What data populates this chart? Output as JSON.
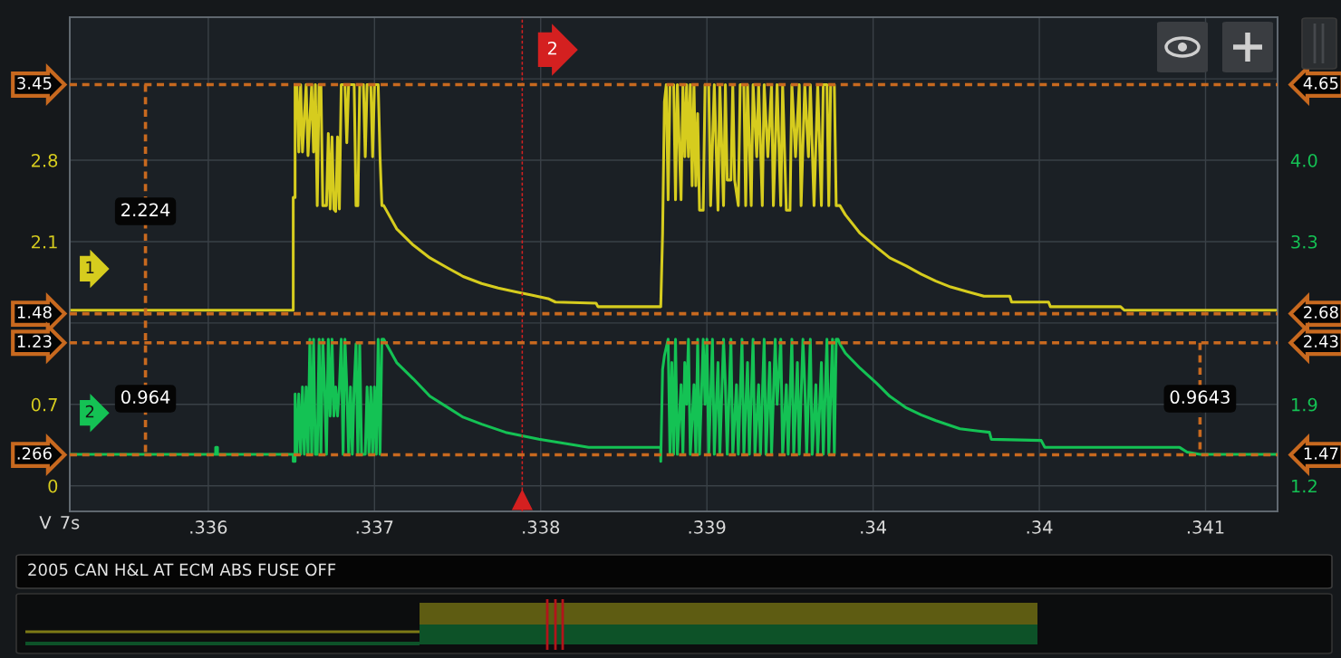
{
  "chart_data": {
    "type": "line",
    "title": "2005 CAN H&L AT ECM ABS FUSE OFF",
    "xlabel": "7s",
    "ylabel": "V",
    "xlim": [
      0.33525,
      0.34179
    ],
    "xticks": [
      {
        "value": 0.336,
        "label": ".336"
      },
      {
        "value": 0.3369,
        "label": ".337"
      },
      {
        "value": 0.3378,
        "label": ".338"
      },
      {
        "value": 0.3387,
        "label": ".339"
      },
      {
        "value": 0.3396,
        "label": ".34"
      },
      {
        "value": 0.3405,
        "label": ".34"
      },
      {
        "value": 0.3414,
        "label": ".341"
      }
    ],
    "ylim": [
      -0.22,
      4.03
    ],
    "yticks": [
      0,
      0.7,
      {
        "value": 1.4,
        "label": null
      },
      2.1,
      2.8,
      {
        "value": 3.5,
        "label": null
      }
    ],
    "y2lim": [
      0.98,
      5.23
    ],
    "y2ticks": [
      1.2,
      1.9,
      {
        "value": 2.6,
        "label": null
      },
      3.3,
      {
        "value": 4.0,
        "label": "4.0"
      },
      {
        "value": 4.7,
        "label": null
      }
    ],
    "grid": true,
    "series": [
      {
        "name": "1",
        "color": "#d6cc1e",
        "x": [
          0.33525,
          0.33646,
          0.33646,
          0.33647,
          0.33647,
          0.33648,
          0.33649,
          0.3365,
          0.33651,
          0.33653,
          0.33654,
          0.33656,
          0.33657,
          0.33658,
          0.33659,
          0.3366,
          0.33661,
          0.33662,
          0.33664,
          0.33665,
          0.33666,
          0.33667,
          0.33668,
          0.33669,
          0.3367,
          0.33671,
          0.33672,
          0.33674,
          0.33675,
          0.33676,
          0.33679,
          0.3368,
          0.33681,
          0.33682,
          0.33684,
          0.33685,
          0.33686,
          0.33688,
          0.33689,
          0.3369,
          0.33692,
          0.33693,
          0.33694,
          0.33695,
          0.33702,
          0.33711,
          0.3372,
          0.3373,
          0.33738,
          0.33748,
          0.33757,
          0.33766,
          0.33775,
          0.33784,
          0.33788,
          0.3381,
          0.33811,
          0.33845,
          0.33846,
          0.33847,
          0.33848,
          0.33849,
          0.3385,
          0.33852,
          0.33853,
          0.33854,
          0.33856,
          0.33857,
          0.33858,
          0.33859,
          0.3386,
          0.33861,
          0.33862,
          0.33863,
          0.33864,
          0.33865,
          0.33866,
          0.33868,
          0.33869,
          0.33871,
          0.33872,
          0.33874,
          0.33876,
          0.33877,
          0.33879,
          0.3388,
          0.33881,
          0.33883,
          0.33884,
          0.33885,
          0.33887,
          0.33888,
          0.3389,
          0.33891,
          0.33892,
          0.33894,
          0.33895,
          0.33897,
          0.33898,
          0.339,
          0.33901,
          0.33903,
          0.33905,
          0.33906,
          0.33908,
          0.3391,
          0.33911,
          0.33913,
          0.33915,
          0.33916,
          0.33918,
          0.3392,
          0.33921,
          0.33923,
          0.33925,
          0.33926,
          0.33928,
          0.3393,
          0.33932,
          0.33933,
          0.33935,
          0.33936,
          0.33937,
          0.33939,
          0.3394,
          0.33942,
          0.33945,
          0.33953,
          0.33962,
          0.33969,
          0.33978,
          0.33986,
          0.33994,
          0.34002,
          0.34011,
          0.3402,
          0.34034,
          0.34035,
          0.34055,
          0.34056,
          0.34094,
          0.34096,
          0.34179
        ],
        "values": [
          1.51,
          1.51,
          2.48,
          2.48,
          3.45,
          3.45,
          2.87,
          3.45,
          2.87,
          3.45,
          2.84,
          3.45,
          2.87,
          3.45,
          2.41,
          3.45,
          3.45,
          2.41,
          2.41,
          3.03,
          2.38,
          3.0,
          2.38,
          2.36,
          3.0,
          2.38,
          3.45,
          3.45,
          2.95,
          3.45,
          3.45,
          2.41,
          2.41,
          3.45,
          3.45,
          2.83,
          3.45,
          3.45,
          2.83,
          3.45,
          3.45,
          2.83,
          2.41,
          2.41,
          2.21,
          2.07,
          1.96,
          1.87,
          1.8,
          1.74,
          1.7,
          1.67,
          1.64,
          1.61,
          1.58,
          1.57,
          1.54,
          1.54,
          2.17,
          3.3,
          3.45,
          2.46,
          3.45,
          3.45,
          2.46,
          3.45,
          2.46,
          3.45,
          2.83,
          3.45,
          2.83,
          3.45,
          2.58,
          3.45,
          2.58,
          3.2,
          2.37,
          2.37,
          3.45,
          3.45,
          2.41,
          3.45,
          2.37,
          3.45,
          2.41,
          3.45,
          2.63,
          2.63,
          3.45,
          2.63,
          2.41,
          3.45,
          3.45,
          2.41,
          3.45,
          2.41,
          3.45,
          2.83,
          3.45,
          2.41,
          3.45,
          2.83,
          3.45,
          2.41,
          3.45,
          2.41,
          3.45,
          2.37,
          2.37,
          3.45,
          2.83,
          3.45,
          2.41,
          3.45,
          2.83,
          3.45,
          2.41,
          3.45,
          2.41,
          3.45,
          3.45,
          2.41,
          3.45,
          3.45,
          2.41,
          2.41,
          2.33,
          2.17,
          2.05,
          1.96,
          1.89,
          1.82,
          1.76,
          1.71,
          1.67,
          1.63,
          1.63,
          1.58,
          1.58,
          1.54,
          1.54,
          1.51,
          1.51
        ]
      },
      {
        "name": "2",
        "color": "#14c254",
        "axis": "y2",
        "x": [
          0.33525,
          0.33604,
          0.33604,
          0.33605,
          0.33605,
          0.33646,
          0.33646,
          0.33647,
          0.33647,
          0.33648,
          0.33649,
          0.3365,
          0.33651,
          0.33652,
          0.33653,
          0.33654,
          0.33655,
          0.33656,
          0.33657,
          0.33658,
          0.33659,
          0.3366,
          0.33661,
          0.33662,
          0.33663,
          0.33664,
          0.33665,
          0.33666,
          0.33667,
          0.33668,
          0.33669,
          0.3367,
          0.33671,
          0.33672,
          0.33673,
          0.33674,
          0.33675,
          0.33676,
          0.33677,
          0.33678,
          0.33679,
          0.3368,
          0.33681,
          0.33682,
          0.33683,
          0.33685,
          0.33686,
          0.33687,
          0.33688,
          0.33689,
          0.3369,
          0.33691,
          0.33692,
          0.33693,
          0.33694,
          0.33695,
          0.33702,
          0.33711,
          0.3372,
          0.3373,
          0.33738,
          0.33748,
          0.33761,
          0.33779,
          0.33806,
          0.33845,
          0.33845,
          0.33846,
          0.33847,
          0.33849,
          0.3385,
          0.33851,
          0.33852,
          0.33853,
          0.33854,
          0.33856,
          0.33857,
          0.33858,
          0.33859,
          0.3386,
          0.33861,
          0.33863,
          0.33864,
          0.33865,
          0.33866,
          0.33868,
          0.33869,
          0.3387,
          0.33871,
          0.33873,
          0.33874,
          0.33876,
          0.33877,
          0.33879,
          0.3388,
          0.33881,
          0.33883,
          0.33884,
          0.33886,
          0.33887,
          0.33889,
          0.3389,
          0.33892,
          0.33893,
          0.33895,
          0.33896,
          0.33898,
          0.33899,
          0.33901,
          0.33902,
          0.33904,
          0.33905,
          0.33907,
          0.33908,
          0.3391,
          0.33911,
          0.33913,
          0.33914,
          0.33916,
          0.33917,
          0.33919,
          0.3392,
          0.33922,
          0.33923,
          0.33924,
          0.33926,
          0.33927,
          0.33929,
          0.3393,
          0.33932,
          0.33933,
          0.33935,
          0.33936,
          0.33938,
          0.33939,
          0.3394,
          0.33941,
          0.33942,
          0.33945,
          0.33953,
          0.33962,
          0.33969,
          0.33978,
          0.33986,
          0.33994,
          0.34007,
          0.34017,
          0.34023,
          0.34024,
          0.34051,
          0.34053,
          0.34126,
          0.3413,
          0.34137,
          0.34179
        ],
        "values": [
          1.47,
          1.47,
          1.53,
          1.53,
          1.47,
          1.47,
          1.41,
          1.41,
          1.99,
          1.47,
          1.99,
          1.47,
          2.05,
          1.47,
          2.05,
          1.47,
          2.46,
          1.47,
          2.46,
          1.47,
          1.47,
          2.46,
          1.47,
          2.46,
          2.05,
          1.47,
          2.46,
          1.8,
          2.46,
          1.8,
          2.05,
          1.8,
          2.05,
          2.46,
          1.47,
          2.46,
          2.05,
          1.47,
          2.05,
          1.47,
          2.05,
          2.42,
          1.47,
          2.42,
          1.47,
          1.47,
          2.05,
          1.47,
          2.05,
          1.47,
          2.05,
          1.47,
          2.46,
          1.47,
          2.46,
          2.46,
          2.26,
          2.12,
          1.97,
          1.87,
          1.79,
          1.73,
          1.66,
          1.6,
          1.53,
          1.53,
          1.41,
          2.2,
          2.32,
          2.46,
          1.47,
          2.26,
          1.47,
          2.46,
          1.47,
          2.07,
          1.47,
          2.26,
          1.9,
          2.46,
          1.47,
          2.07,
          1.47,
          2.46,
          1.47,
          2.46,
          1.9,
          2.46,
          1.47,
          2.46,
          1.47,
          2.26,
          1.47,
          2.46,
          2.07,
          1.47,
          2.46,
          1.47,
          2.07,
          1.47,
          2.46,
          1.47,
          2.26,
          1.47,
          2.46,
          1.47,
          2.07,
          1.47,
          2.46,
          1.47,
          2.26,
          1.47,
          2.46,
          1.9,
          2.46,
          1.47,
          2.07,
          1.47,
          2.46,
          1.47,
          2.26,
          1.47,
          2.46,
          2.07,
          1.47,
          2.46,
          1.47,
          2.07,
          1.47,
          2.26,
          1.47,
          2.46,
          1.47,
          2.46,
          1.47,
          2.46,
          2.46,
          2.42,
          2.34,
          2.21,
          2.08,
          1.97,
          1.87,
          1.81,
          1.76,
          1.69,
          1.67,
          1.66,
          1.6,
          1.59,
          1.53,
          1.53,
          1.49,
          1.47,
          1.47
        ]
      },
      {
        "color": "#c8691f",
        "line_style": "dashed",
        "x": [
          0.33566,
          0.33566
        ],
        "values": [
          3.45,
          0.266
        ]
      },
      {
        "color": "#c8691f",
        "line_style": "dashed",
        "axis": "y2",
        "x": [
          0.34137,
          0.34137
        ],
        "values": [
          2.43,
          1.47
        ]
      }
    ],
    "ref_lines": [
      {
        "axis": "y",
        "value": 3.45,
        "label": "3.45",
        "color": "#c8691f",
        "line_style": "dashed"
      },
      {
        "axis": "y",
        "value": 1.48,
        "label": "1.48",
        "color": "#c8691f",
        "line_style": "dashed"
      },
      {
        "axis": "y",
        "value": 1.23,
        "label": "1.23",
        "color": "#c8691f",
        "line_style": "dashed"
      },
      {
        "axis": "y",
        "value": 0.266,
        "label": ".266",
        "color": "#c8691f",
        "line_style": "dashed"
      },
      {
        "axis": "x",
        "value": 0.3377,
        "color": "#d42020",
        "line_style": "dashed"
      }
    ],
    "annotations": [
      {
        "text": "4.65",
        "x": 0.34179,
        "y": 3.45
      },
      {
        "text": "2.68",
        "x": 0.34179,
        "y": 1.48
      },
      {
        "text": "2.43",
        "x": 0.34179,
        "y": 1.23
      },
      {
        "text": "1.47",
        "x": 0.34179,
        "y": 0.266
      },
      {
        "text": "2.224",
        "x": 0.33566,
        "y": 2.36
      },
      {
        "text": "0.964",
        "x": 0.33566,
        "y": 0.75
      },
      {
        "text": "0.9643",
        "x": 0.34137,
        "y": 0.75
      },
      {
        "text": "2",
        "x": 0.3377,
        "y": 3.75
      }
    ]
  }
}
